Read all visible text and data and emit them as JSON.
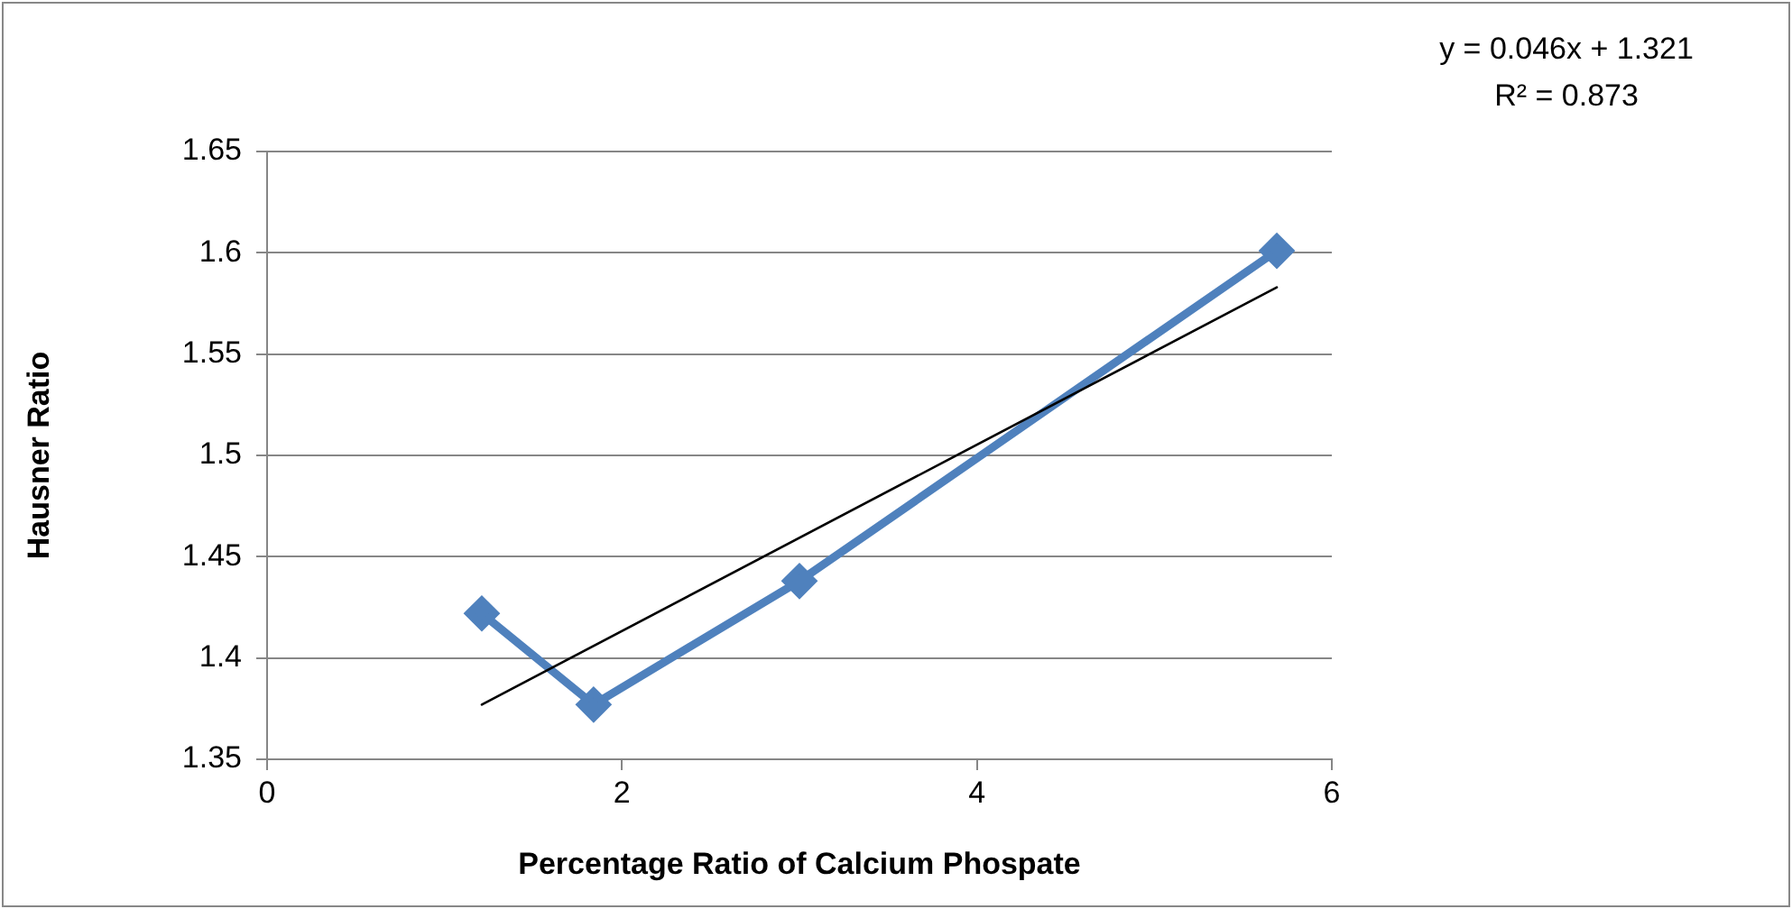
{
  "chart_data": {
    "type": "line",
    "xlabel": "Percentage Ratio of Calcium Phospate",
    "ylabel": "Hausner Ratio",
    "annotations": [
      "y = 0.046x + 1.321",
      "R² = 0.873"
    ],
    "series": [
      {
        "color": "#4f81bd",
        "x": [
          1.21,
          1.84,
          3.0,
          5.69
        ],
        "values": [
          1.422,
          1.377,
          1.438,
          1.601
        ],
        "marker": "diamond"
      },
      {
        "color": "#000000",
        "x": [
          1.21,
          5.69
        ],
        "values": [
          1.377,
          1.583
        ],
        "marker": "none"
      }
    ],
    "xlim": [
      0,
      6
    ],
    "xticks": [
      0,
      2,
      4,
      6
    ],
    "ylim": [
      1.35,
      1.65
    ],
    "yticks": [
      1.35,
      1.4,
      1.45,
      1.5,
      1.55,
      1.6,
      1.65
    ],
    "grid": "y",
    "legend": false
  }
}
